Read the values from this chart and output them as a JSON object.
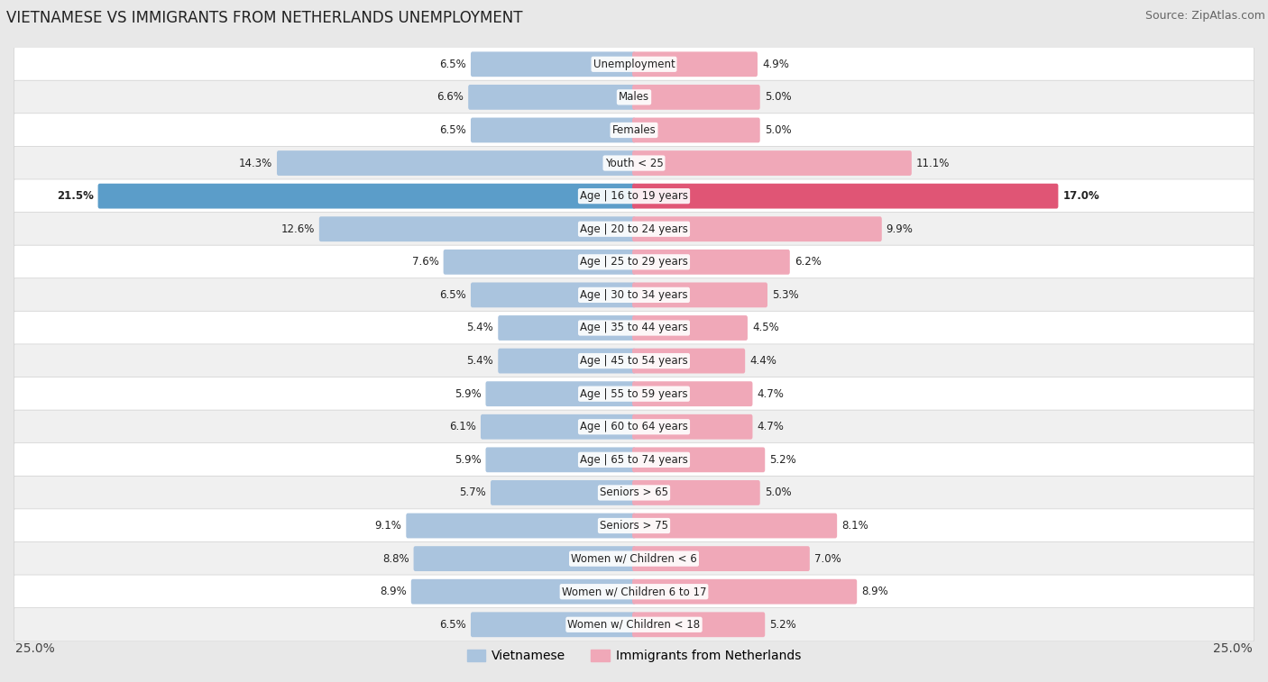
{
  "title": "VIETNAMESE VS IMMIGRANTS FROM NETHERLANDS UNEMPLOYMENT",
  "source": "Source: ZipAtlas.com",
  "categories": [
    "Unemployment",
    "Males",
    "Females",
    "Youth < 25",
    "Age | 16 to 19 years",
    "Age | 20 to 24 years",
    "Age | 25 to 29 years",
    "Age | 30 to 34 years",
    "Age | 35 to 44 years",
    "Age | 45 to 54 years",
    "Age | 55 to 59 years",
    "Age | 60 to 64 years",
    "Age | 65 to 74 years",
    "Seniors > 65",
    "Seniors > 75",
    "Women w/ Children < 6",
    "Women w/ Children 6 to 17",
    "Women w/ Children < 18"
  ],
  "vietnamese": [
    6.5,
    6.6,
    6.5,
    14.3,
    21.5,
    12.6,
    7.6,
    6.5,
    5.4,
    5.4,
    5.9,
    6.1,
    5.9,
    5.7,
    9.1,
    8.8,
    8.9,
    6.5
  ],
  "netherlands": [
    4.9,
    5.0,
    5.0,
    11.1,
    17.0,
    9.9,
    6.2,
    5.3,
    4.5,
    4.4,
    4.7,
    4.7,
    5.2,
    5.0,
    8.1,
    7.0,
    8.9,
    5.2
  ],
  "vietnamese_color": "#aac4de",
  "netherlands_color": "#f0a8b8",
  "highlight_vietnamese_color": "#5b9dc9",
  "highlight_netherlands_color": "#e05575",
  "background_color": "#e8e8e8",
  "row_even_color": "#ffffff",
  "row_odd_color": "#f0f0f0",
  "max_value": 25.0,
  "label_fontsize": 8.5,
  "value_fontsize": 8.5,
  "title_fontsize": 12,
  "source_fontsize": 9,
  "legend_fontsize": 10,
  "legend_vietnamese": "Vietnamese",
  "legend_netherlands": "Immigrants from Netherlands"
}
